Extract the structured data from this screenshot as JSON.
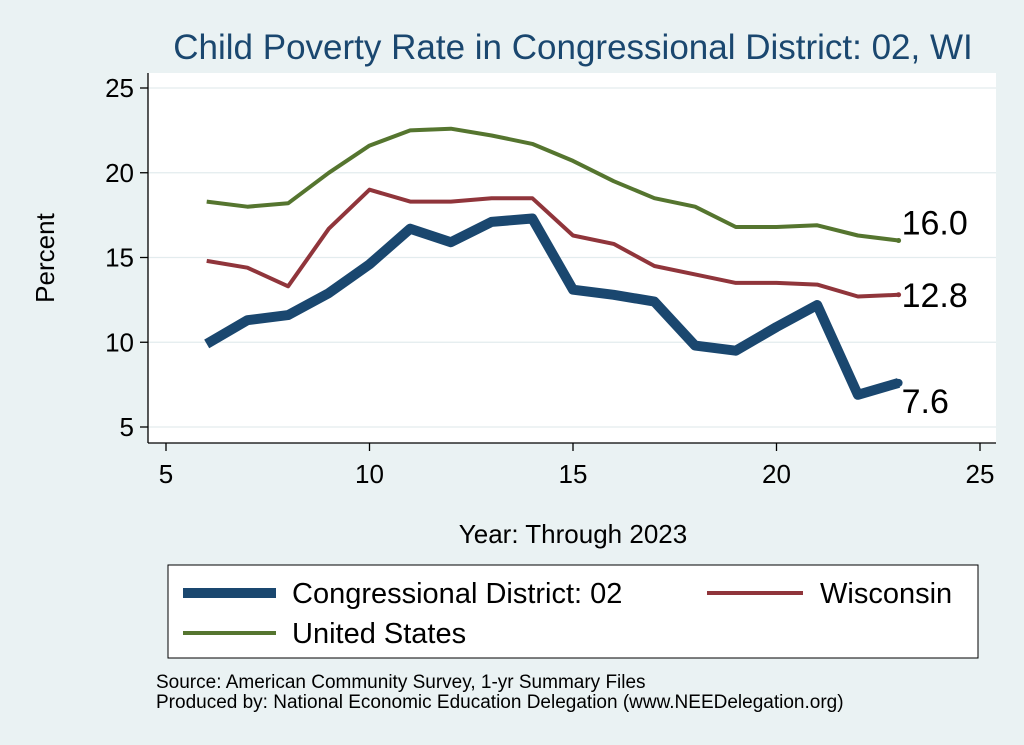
{
  "chart_data": {
    "type": "line",
    "title": "Child Poverty Rate in Congressional District:  02, WI",
    "xlabel": "Year: Through 2023",
    "ylabel": "Percent",
    "xlim": [
      5,
      25
    ],
    "ylim": [
      4,
      26
    ],
    "xticks": [
      5,
      10,
      15,
      20,
      25
    ],
    "yticks": [
      5,
      10,
      15,
      20,
      25
    ],
    "grid": true,
    "legend_position": "bottom",
    "series": [
      {
        "name": "Congressional District:  02",
        "color": "#1a476f",
        "x": [
          6,
          7,
          8,
          9,
          10,
          11,
          12,
          13,
          14,
          15,
          16,
          17,
          18,
          19,
          20,
          21,
          22,
          23
        ],
        "y": [
          9.9,
          11.3,
          11.6,
          12.9,
          14.6,
          16.7,
          15.9,
          17.1,
          17.3,
          13.1,
          12.8,
          12.4,
          9.8,
          9.5,
          10.9,
          12.2,
          6.9,
          7.6
        ],
        "end_label": "7.6"
      },
      {
        "name": "Wisconsin",
        "color": "#90353b",
        "x": [
          6,
          7,
          8,
          9,
          10,
          11,
          12,
          13,
          14,
          15,
          16,
          17,
          18,
          19,
          20,
          21,
          22,
          23
        ],
        "y": [
          14.8,
          14.4,
          13.3,
          16.7,
          19.0,
          18.3,
          18.3,
          18.5,
          18.5,
          16.3,
          15.8,
          14.5,
          14.0,
          13.5,
          13.5,
          13.4,
          12.7,
          12.8
        ],
        "end_label": "12.8"
      },
      {
        "name": "United States",
        "color": "#55752f",
        "x": [
          6,
          7,
          8,
          9,
          10,
          11,
          12,
          13,
          14,
          15,
          16,
          17,
          18,
          19,
          20,
          21,
          22,
          23
        ],
        "y": [
          18.3,
          18.0,
          18.2,
          20.0,
          21.6,
          22.5,
          22.6,
          22.2,
          21.7,
          20.7,
          19.5,
          18.5,
          18.0,
          16.8,
          16.8,
          16.9,
          16.3,
          16.0
        ],
        "end_label": "16.0"
      }
    ]
  },
  "notes": {
    "source": "Source: American Community Survey, 1-yr Summary Files",
    "produced_by": "Produced by: National Economic Education Delegation (www.NEEDelegation.org)"
  }
}
